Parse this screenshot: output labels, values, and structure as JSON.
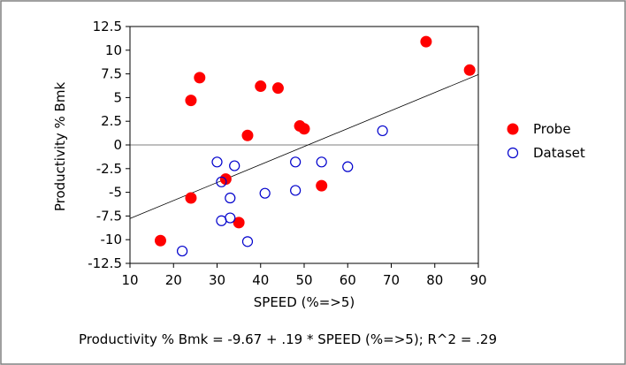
{
  "chart_data": {
    "type": "scatter",
    "title": "",
    "xlabel": "SPEED (%=>5)",
    "ylabel": "Productivity % Bmk",
    "xlim": [
      10,
      90
    ],
    "ylim": [
      -12.5,
      12.5
    ],
    "x_ticks": [
      10,
      20,
      30,
      40,
      50,
      60,
      70,
      80,
      90
    ],
    "y_ticks": [
      12.5,
      10,
      7.5,
      5,
      2.5,
      0,
      -2.5,
      -5,
      -7.5,
      -10,
      -12.5
    ],
    "x_tick_labels": [
      "10",
      "20",
      "30",
      "40",
      "50",
      "60",
      "70",
      "80",
      "90"
    ],
    "y_tick_labels": [
      "12.5",
      "10",
      "7.5",
      "5",
      "2.5",
      "0",
      "-2.5",
      "-5",
      "-7.5",
      "-10",
      "-12.5"
    ],
    "grid": false,
    "zero_line": 0,
    "legend_position": "right",
    "series": [
      {
        "name": "Probe",
        "marker": "filled-circle",
        "color": "#ff0000",
        "points": [
          [
            17,
            -10.1
          ],
          [
            24,
            4.7
          ],
          [
            24,
            -5.6
          ],
          [
            26,
            7.1
          ],
          [
            32,
            -3.6
          ],
          [
            35,
            -8.2
          ],
          [
            37,
            1.0
          ],
          [
            40,
            6.2
          ],
          [
            44,
            6.0
          ],
          [
            49,
            2.0
          ],
          [
            50,
            1.7
          ],
          [
            54,
            -4.3
          ],
          [
            78,
            10.9
          ],
          [
            88,
            7.9
          ]
        ]
      },
      {
        "name": "Dataset",
        "marker": "open-circle",
        "color": "#0000cc",
        "points": [
          [
            22,
            -11.2
          ],
          [
            30,
            -1.8
          ],
          [
            31,
            -3.9
          ],
          [
            31,
            -8.0
          ],
          [
            33,
            -5.6
          ],
          [
            33,
            -7.7
          ],
          [
            34,
            -2.2
          ],
          [
            37,
            -10.2
          ],
          [
            41,
            -5.1
          ],
          [
            48,
            -1.8
          ],
          [
            48,
            -4.8
          ],
          [
            54,
            -1.8
          ],
          [
            60,
            -2.3
          ],
          [
            68,
            1.5
          ]
        ]
      }
    ],
    "fit_line": {
      "intercept": -9.67,
      "slope": 0.19,
      "r_squared": 0.29,
      "equation": "Productivity % Bmk = -9.67 + .19 * SPEED (%=>5); R^2 = .29"
    }
  }
}
